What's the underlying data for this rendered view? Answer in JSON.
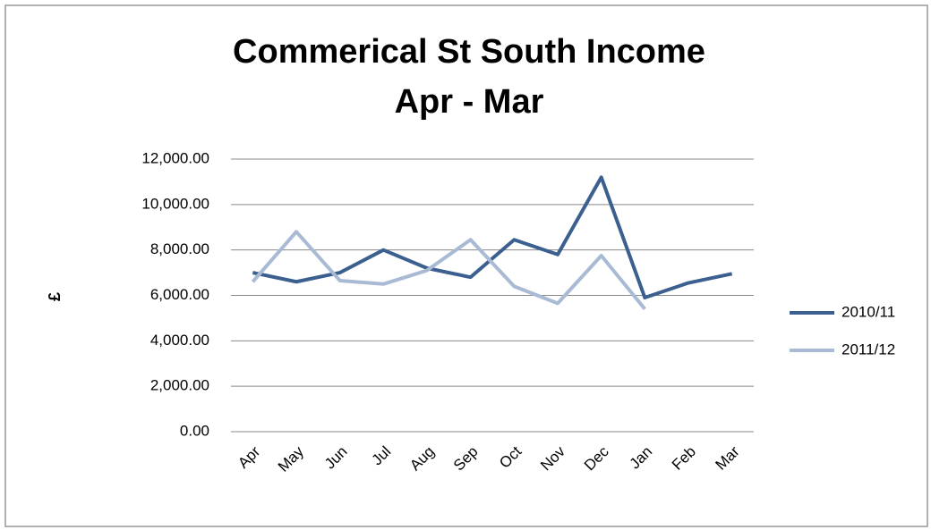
{
  "chart_data": {
    "type": "line",
    "title": "Commerical St South Income",
    "subtitle": "Apr - Mar",
    "y_label": "£",
    "categories": [
      "Apr",
      "May",
      "Jun",
      "Jul",
      "Aug",
      "Sep",
      "Oct",
      "Nov",
      "Dec",
      "Jan",
      "Feb",
      "Mar"
    ],
    "series": [
      {
        "name": "2010/11",
        "color": "#3b5f8f",
        "values": [
          7000,
          6600,
          7000,
          8000,
          7200,
          6800,
          8450,
          7800,
          11200,
          5900,
          6550,
          6950
        ]
      },
      {
        "name": "2011/12",
        "color": "#a9bad5",
        "values": [
          6600,
          8800,
          6650,
          6500,
          7100,
          8450,
          6400,
          5650,
          7750,
          5400,
          null,
          null
        ]
      }
    ],
    "ylim": [
      0,
      12000
    ],
    "yticks": [
      {
        "value": 0,
        "label": "0.00"
      },
      {
        "value": 2000,
        "label": "2,000.00"
      },
      {
        "value": 4000,
        "label": "4,000.00"
      },
      {
        "value": 6000,
        "label": "6,000.00"
      },
      {
        "value": 8000,
        "label": "8,000.00"
      },
      {
        "value": 10000,
        "label": "10,000.00"
      },
      {
        "value": 12000,
        "label": "12,000.00"
      }
    ],
    "grid": true,
    "legend": "right"
  }
}
